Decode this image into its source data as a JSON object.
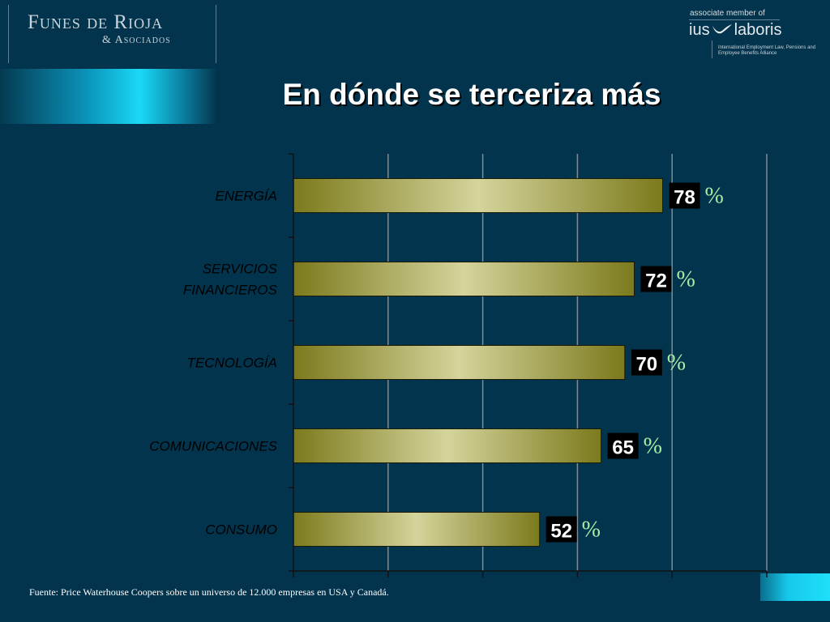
{
  "header": {
    "logo_main": "Funes de Rioja",
    "logo_sub": "& Asociados",
    "associate_text": "associate member of",
    "network_name_left": "ius",
    "network_name_right": "laboris",
    "network_tagline": "International Employment Law, Pensions and Employee Benefits Alliance"
  },
  "title": "En dónde se terceriza más",
  "chart_data": {
    "type": "bar",
    "orientation": "horizontal",
    "categories": [
      "ENERGÍA",
      "SERVICIOS FINANCIEROS",
      "TECNOLOGÍA",
      "COMUNICACIONES",
      "CONSUMO"
    ],
    "category_lines": [
      [
        "ENERGÍA"
      ],
      [
        "SERVICIOS",
        "FINANCIEROS"
      ],
      [
        "TECNOLOGÍA"
      ],
      [
        "COMUNICACIONES"
      ],
      [
        "CONSUMO"
      ]
    ],
    "values": [
      78,
      72,
      70,
      65,
      52
    ],
    "value_labels": [
      "78",
      "72",
      "70",
      "65",
      "52"
    ],
    "unit_suffix": "%",
    "xlim": [
      0,
      100
    ],
    "grid": true,
    "colors": {
      "bar_dark": "#7c7a1c",
      "bar_light": "#d4d49c",
      "axis": "#111111",
      "grid": "#7f8c93",
      "plot_bg": "#03344d",
      "percent": "#a6f0a6",
      "label_bg": "#000000",
      "label_text": "#ffffff",
      "category_text": "#000000"
    }
  },
  "footnote": "Fuente: Price Waterhouse Coopers sobre un universo de 12.000 empresas  en USA y Canadá."
}
